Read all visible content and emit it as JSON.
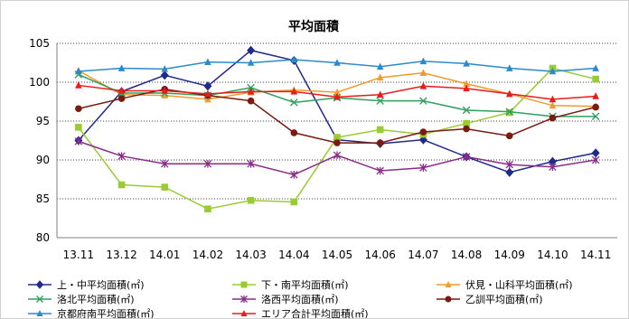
{
  "chart_data": {
    "type": "line",
    "title": "平均面積",
    "xlabel": "",
    "ylabel": "",
    "categories": [
      "13.11",
      "13.12",
      "14.01",
      "14.02",
      "14.03",
      "14.04",
      "14.05",
      "14.06",
      "14.07",
      "14.08",
      "14.09",
      "14.10",
      "14.11"
    ],
    "ylim": [
      80,
      105
    ],
    "yticks": [
      80,
      85,
      90,
      95,
      100,
      105
    ],
    "grid": "horizontal-dotted",
    "legend_position": "bottom",
    "series": [
      {
        "name": "上・中平均面積(㎡)",
        "color": "#1f2a8a",
        "marker": "diamond",
        "values": [
          92.5,
          98.8,
          100.9,
          99.5,
          104.1,
          102.8,
          92.6,
          92.1,
          92.6,
          90.4,
          88.4,
          89.8,
          90.9
        ]
      },
      {
        "name": "下・南平均面積(㎡)",
        "color": "#99cc33",
        "marker": "square",
        "values": [
          94.2,
          86.8,
          86.5,
          83.7,
          84.8,
          84.6,
          92.9,
          93.9,
          93.3,
          94.7,
          96.1,
          101.8,
          100.4
        ]
      },
      {
        "name": "伏見・山科平均面積(㎡)",
        "color": "#f39a2c",
        "marker": "triangle",
        "values": [
          101.5,
          98.4,
          98.3,
          97.8,
          98.7,
          99.0,
          98.7,
          100.6,
          101.2,
          99.8,
          98.5,
          97.0,
          96.9
        ]
      },
      {
        "name": "洛北平均面積(㎡)",
        "color": "#2ea05e",
        "marker": "x",
        "values": [
          101.0,
          98.6,
          98.6,
          98.3,
          99.3,
          97.4,
          98.0,
          97.6,
          97.6,
          96.4,
          96.2,
          95.6,
          95.6
        ]
      },
      {
        "name": "洛西平均面積(㎡)",
        "color": "#8a2c8a",
        "marker": "star",
        "values": [
          92.4,
          90.5,
          89.5,
          89.5,
          89.5,
          88.1,
          90.6,
          88.6,
          89.0,
          90.4,
          89.4,
          89.1,
          90.0
        ]
      },
      {
        "name": "乙訓平均面積(㎡)",
        "color": "#7a1a10",
        "marker": "circle",
        "values": [
          96.6,
          97.9,
          99.1,
          98.3,
          97.6,
          93.5,
          92.2,
          92.2,
          93.6,
          94.0,
          93.1,
          95.4,
          96.8
        ]
      },
      {
        "name": "京都府南平均面積(㎡)",
        "color": "#2d8ac9",
        "marker": "triangle",
        "values": [
          101.4,
          101.8,
          101.7,
          102.6,
          102.5,
          102.9,
          102.5,
          102.0,
          102.7,
          102.4,
          101.8,
          101.4,
          101.8
        ]
      },
      {
        "name": "エリア合計平均面積(㎡)",
        "color": "#e81c1c",
        "marker": "triangle",
        "values": [
          99.6,
          98.9,
          98.9,
          98.5,
          98.8,
          98.8,
          98.1,
          98.4,
          99.5,
          99.2,
          98.5,
          97.8,
          98.2
        ]
      }
    ]
  }
}
